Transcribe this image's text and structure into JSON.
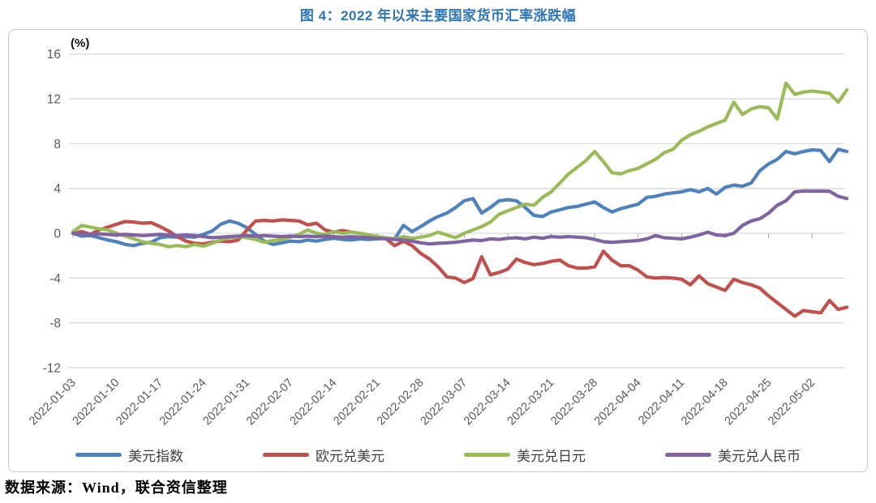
{
  "page": {
    "title": "图 4：2022 年以来主要国家货币汇率涨跌幅",
    "source_note": "数据来源：Wind，联合资信整理"
  },
  "chart_data": {
    "type": "line",
    "title": "图 4：2022 年以来主要国家货币汇率涨跌幅",
    "unit_label": "(%)",
    "grid": true,
    "legend_position": "bottom",
    "y_axis": {
      "min": -12,
      "max": 16,
      "tick_step": 4,
      "tick_labels": [
        16,
        12,
        8,
        4,
        0,
        -4,
        -8,
        -12
      ]
    },
    "x_axis": {
      "tick_labels": [
        "2022-01-03",
        "2022-01-10",
        "2022-01-17",
        "2022-01-24",
        "2022-01-31",
        "2022-02-07",
        "2022-02-14",
        "2022-02-21",
        "2022-02-28",
        "2022-03-07",
        "2022-03-14",
        "2022-03-21",
        "2022-03-28",
        "2022-04-04",
        "2022-04-11",
        "2022-04-18",
        "2022-04-25",
        "2022-05-02"
      ],
      "points_per_tick": 5,
      "label_rotation_deg": -45
    },
    "colors": {
      "grid": "#D9D9D9",
      "axis_text": "#595959",
      "frame_border": "#C6C6C6",
      "title": "#2E75B6"
    },
    "series": [
      {
        "id": "usd-index",
        "name": "美元指数",
        "color": "#4F81BD",
        "values": [
          0.0,
          -0.25,
          -0.2,
          -0.4,
          -0.6,
          -0.75,
          -1.0,
          -1.1,
          -0.9,
          -0.8,
          -0.4,
          -0.3,
          -0.35,
          -0.3,
          -0.35,
          -0.1,
          0.2,
          0.8,
          1.1,
          0.9,
          0.5,
          -0.1,
          -0.7,
          -1.0,
          -0.85,
          -0.7,
          -0.75,
          -0.6,
          -0.7,
          -0.55,
          -0.45,
          -0.55,
          -0.6,
          -0.5,
          -0.55,
          -0.5,
          -0.45,
          -0.5,
          0.7,
          0.15,
          0.6,
          1.1,
          1.5,
          1.8,
          2.3,
          2.9,
          3.1,
          1.8,
          2.3,
          2.9,
          3.0,
          2.9,
          2.3,
          1.6,
          1.5,
          1.9,
          2.1,
          2.3,
          2.4,
          2.6,
          2.8,
          2.3,
          1.9,
          2.2,
          2.4,
          2.6,
          3.2,
          3.3,
          3.5,
          3.6,
          3.7,
          3.9,
          3.7,
          4.0,
          3.5,
          4.1,
          4.3,
          4.2,
          4.5,
          5.6,
          6.2,
          6.6,
          7.3,
          7.1,
          7.3,
          7.45,
          7.4,
          6.4,
          7.5,
          7.3
        ]
      },
      {
        "id": "eur-usd",
        "name": "欧元兑美元",
        "color": "#C0504D",
        "values": [
          0.0,
          0.15,
          -0.1,
          0.3,
          0.55,
          0.8,
          1.05,
          1.0,
          0.9,
          0.95,
          0.6,
          0.2,
          -0.3,
          -0.7,
          -0.9,
          -0.95,
          -0.8,
          -0.7,
          -0.75,
          -0.6,
          0.3,
          1.1,
          1.15,
          1.1,
          1.2,
          1.15,
          1.1,
          0.75,
          0.9,
          0.3,
          0.1,
          0.25,
          0.1,
          0.0,
          -0.15,
          -0.3,
          -0.5,
          -1.1,
          -0.7,
          -1.1,
          -1.8,
          -2.3,
          -3.0,
          -3.9,
          -4.0,
          -4.4,
          -4.05,
          -2.1,
          -3.7,
          -3.5,
          -3.2,
          -2.3,
          -2.6,
          -2.8,
          -2.7,
          -2.5,
          -2.4,
          -2.9,
          -3.1,
          -3.1,
          -3.0,
          -1.6,
          -2.4,
          -2.9,
          -2.9,
          -3.3,
          -3.9,
          -4.0,
          -3.95,
          -4.0,
          -4.1,
          -4.6,
          -3.8,
          -4.5,
          -4.8,
          -5.1,
          -4.1,
          -4.4,
          -4.6,
          -4.9,
          -5.6,
          -6.2,
          -6.8,
          -7.4,
          -6.9,
          -7.0,
          -7.1,
          -6.0,
          -6.8,
          -6.6
        ]
      },
      {
        "id": "usd-jpy",
        "name": "美元兑日元",
        "color": "#9BBB59",
        "values": [
          0.15,
          0.7,
          0.55,
          0.4,
          0.3,
          0.0,
          -0.25,
          -0.5,
          -0.75,
          -0.9,
          -1.0,
          -1.2,
          -1.1,
          -1.2,
          -1.0,
          -1.15,
          -0.9,
          -0.6,
          -0.4,
          -0.3,
          -0.4,
          -0.55,
          -0.8,
          -0.65,
          -0.55,
          -0.35,
          -0.1,
          0.3,
          0.0,
          -0.1,
          0.15,
          0.0,
          0.1,
          0.0,
          -0.15,
          -0.3,
          -0.4,
          -0.5,
          -0.3,
          -0.45,
          -0.35,
          -0.2,
          0.1,
          -0.15,
          -0.4,
          0.0,
          0.3,
          0.6,
          1.0,
          1.7,
          2.0,
          2.3,
          2.6,
          2.5,
          3.2,
          3.7,
          4.5,
          5.3,
          5.9,
          6.5,
          7.3,
          6.4,
          5.4,
          5.3,
          5.6,
          5.8,
          6.2,
          6.6,
          7.2,
          7.5,
          8.3,
          8.8,
          9.1,
          9.5,
          9.8,
          10.1,
          11.7,
          10.6,
          11.1,
          11.3,
          11.2,
          10.2,
          13.4,
          12.4,
          12.6,
          12.7,
          12.6,
          12.5,
          11.7,
          12.8
        ]
      },
      {
        "id": "usd-cny",
        "name": "美元兑人民币",
        "color": "#8064A2",
        "values": [
          0.0,
          -0.05,
          -0.1,
          -0.05,
          -0.1,
          -0.15,
          -0.1,
          -0.15,
          -0.2,
          -0.15,
          -0.1,
          -0.15,
          -0.2,
          -0.15,
          -0.2,
          -0.3,
          -0.4,
          -0.35,
          -0.3,
          -0.25,
          -0.2,
          -0.25,
          -0.2,
          -0.25,
          -0.3,
          -0.25,
          -0.3,
          -0.25,
          -0.3,
          -0.25,
          -0.3,
          -0.35,
          -0.3,
          -0.35,
          -0.4,
          -0.45,
          -0.5,
          -0.55,
          -0.6,
          -0.7,
          -0.85,
          -0.95,
          -0.9,
          -0.85,
          -0.8,
          -0.7,
          -0.6,
          -0.65,
          -0.5,
          -0.55,
          -0.45,
          -0.4,
          -0.5,
          -0.35,
          -0.45,
          -0.3,
          -0.35,
          -0.3,
          -0.35,
          -0.4,
          -0.55,
          -0.75,
          -0.8,
          -0.75,
          -0.7,
          -0.65,
          -0.5,
          -0.2,
          -0.4,
          -0.45,
          -0.5,
          -0.35,
          -0.15,
          0.1,
          -0.15,
          -0.2,
          0.0,
          0.7,
          1.1,
          1.3,
          1.8,
          2.5,
          2.9,
          3.7,
          3.77,
          3.77,
          3.77,
          3.75,
          3.3,
          3.1
        ]
      }
    ]
  }
}
